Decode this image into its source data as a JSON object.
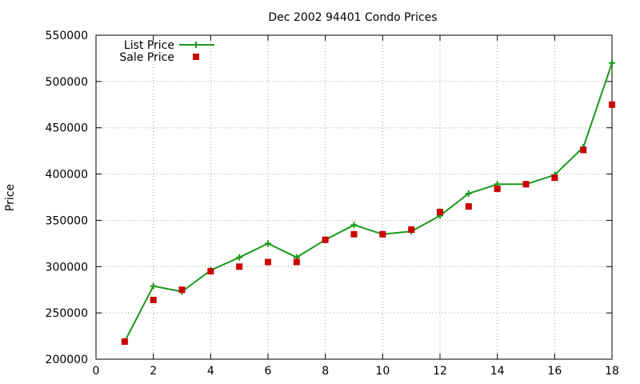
{
  "chart_data": {
    "type": "line",
    "title": "Dec 2002 94401 Condo Prices",
    "xlabel": "",
    "ylabel": "Price",
    "xlim": [
      0,
      18
    ],
    "ylim": [
      200000,
      550000
    ],
    "xticks": [
      0,
      2,
      4,
      6,
      8,
      10,
      12,
      14,
      16,
      18
    ],
    "yticks": [
      200000,
      250000,
      300000,
      350000,
      400000,
      450000,
      500000,
      550000
    ],
    "grid": true,
    "legend_position": "top-left",
    "series": [
      {
        "name": "List Price",
        "style": "line+cross",
        "color": "#1a9a1a",
        "x": [
          1,
          2,
          3,
          4,
          5,
          6,
          7,
          8,
          9,
          10,
          11,
          12,
          13,
          14,
          15,
          16,
          17,
          18
        ],
        "values": [
          219000,
          279000,
          273000,
          296000,
          310000,
          325000,
          310000,
          329000,
          345000,
          335000,
          338000,
          355000,
          379000,
          389000,
          389000,
          399000,
          429000,
          520000
        ]
      },
      {
        "name": "Sale Price",
        "style": "square",
        "color": "#cc0000",
        "x": [
          1,
          2,
          3,
          4,
          5,
          6,
          7,
          8,
          9,
          10,
          11,
          12,
          13,
          14,
          15,
          16,
          17,
          18
        ],
        "values": [
          219000,
          264000,
          275000,
          295000,
          300000,
          305000,
          305000,
          329000,
          335000,
          335000,
          340000,
          359000,
          365000,
          384000,
          389000,
          396000,
          426000,
          475000
        ]
      }
    ]
  }
}
